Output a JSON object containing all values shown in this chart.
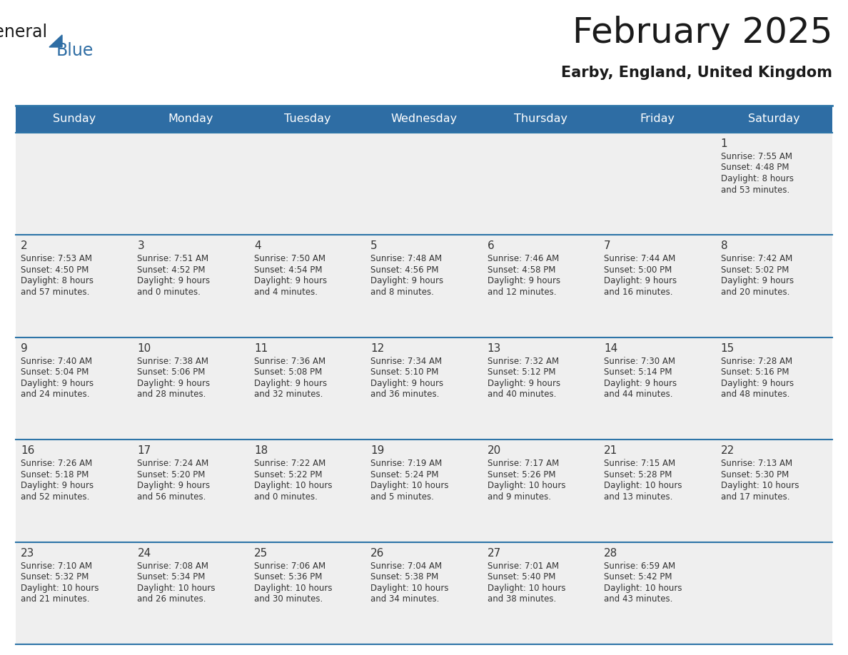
{
  "title": "February 2025",
  "subtitle": "Earby, England, United Kingdom",
  "header_bg": "#2E6DA4",
  "header_text_color": "#FFFFFF",
  "cell_bg": "#EFEFEF",
  "text_color": "#333333",
  "line_color": "#2E75A8",
  "days_of_week": [
    "Sunday",
    "Monday",
    "Tuesday",
    "Wednesday",
    "Thursday",
    "Friday",
    "Saturday"
  ],
  "calendar": [
    [
      null,
      null,
      null,
      null,
      null,
      null,
      {
        "day": "1",
        "sunrise": "7:55 AM",
        "sunset": "4:48 PM",
        "daylight": "8 hours\nand 53 minutes."
      }
    ],
    [
      {
        "day": "2",
        "sunrise": "7:53 AM",
        "sunset": "4:50 PM",
        "daylight": "8 hours\nand 57 minutes."
      },
      {
        "day": "3",
        "sunrise": "7:51 AM",
        "sunset": "4:52 PM",
        "daylight": "9 hours\nand 0 minutes."
      },
      {
        "day": "4",
        "sunrise": "7:50 AM",
        "sunset": "4:54 PM",
        "daylight": "9 hours\nand 4 minutes."
      },
      {
        "day": "5",
        "sunrise": "7:48 AM",
        "sunset": "4:56 PM",
        "daylight": "9 hours\nand 8 minutes."
      },
      {
        "day": "6",
        "sunrise": "7:46 AM",
        "sunset": "4:58 PM",
        "daylight": "9 hours\nand 12 minutes."
      },
      {
        "day": "7",
        "sunrise": "7:44 AM",
        "sunset": "5:00 PM",
        "daylight": "9 hours\nand 16 minutes."
      },
      {
        "day": "8",
        "sunrise": "7:42 AM",
        "sunset": "5:02 PM",
        "daylight": "9 hours\nand 20 minutes."
      }
    ],
    [
      {
        "day": "9",
        "sunrise": "7:40 AM",
        "sunset": "5:04 PM",
        "daylight": "9 hours\nand 24 minutes."
      },
      {
        "day": "10",
        "sunrise": "7:38 AM",
        "sunset": "5:06 PM",
        "daylight": "9 hours\nand 28 minutes."
      },
      {
        "day": "11",
        "sunrise": "7:36 AM",
        "sunset": "5:08 PM",
        "daylight": "9 hours\nand 32 minutes."
      },
      {
        "day": "12",
        "sunrise": "7:34 AM",
        "sunset": "5:10 PM",
        "daylight": "9 hours\nand 36 minutes."
      },
      {
        "day": "13",
        "sunrise": "7:32 AM",
        "sunset": "5:12 PM",
        "daylight": "9 hours\nand 40 minutes."
      },
      {
        "day": "14",
        "sunrise": "7:30 AM",
        "sunset": "5:14 PM",
        "daylight": "9 hours\nand 44 minutes."
      },
      {
        "day": "15",
        "sunrise": "7:28 AM",
        "sunset": "5:16 PM",
        "daylight": "9 hours\nand 48 minutes."
      }
    ],
    [
      {
        "day": "16",
        "sunrise": "7:26 AM",
        "sunset": "5:18 PM",
        "daylight": "9 hours\nand 52 minutes."
      },
      {
        "day": "17",
        "sunrise": "7:24 AM",
        "sunset": "5:20 PM",
        "daylight": "9 hours\nand 56 minutes."
      },
      {
        "day": "18",
        "sunrise": "7:22 AM",
        "sunset": "5:22 PM",
        "daylight": "10 hours\nand 0 minutes."
      },
      {
        "day": "19",
        "sunrise": "7:19 AM",
        "sunset": "5:24 PM",
        "daylight": "10 hours\nand 5 minutes."
      },
      {
        "day": "20",
        "sunrise": "7:17 AM",
        "sunset": "5:26 PM",
        "daylight": "10 hours\nand 9 minutes."
      },
      {
        "day": "21",
        "sunrise": "7:15 AM",
        "sunset": "5:28 PM",
        "daylight": "10 hours\nand 13 minutes."
      },
      {
        "day": "22",
        "sunrise": "7:13 AM",
        "sunset": "5:30 PM",
        "daylight": "10 hours\nand 17 minutes."
      }
    ],
    [
      {
        "day": "23",
        "sunrise": "7:10 AM",
        "sunset": "5:32 PM",
        "daylight": "10 hours\nand 21 minutes."
      },
      {
        "day": "24",
        "sunrise": "7:08 AM",
        "sunset": "5:34 PM",
        "daylight": "10 hours\nand 26 minutes."
      },
      {
        "day": "25",
        "sunrise": "7:06 AM",
        "sunset": "5:36 PM",
        "daylight": "10 hours\nand 30 minutes."
      },
      {
        "day": "26",
        "sunrise": "7:04 AM",
        "sunset": "5:38 PM",
        "daylight": "10 hours\nand 34 minutes."
      },
      {
        "day": "27",
        "sunrise": "7:01 AM",
        "sunset": "5:40 PM",
        "daylight": "10 hours\nand 38 minutes."
      },
      {
        "day": "28",
        "sunrise": "6:59 AM",
        "sunset": "5:42 PM",
        "daylight": "10 hours\nand 43 minutes."
      },
      null
    ]
  ]
}
